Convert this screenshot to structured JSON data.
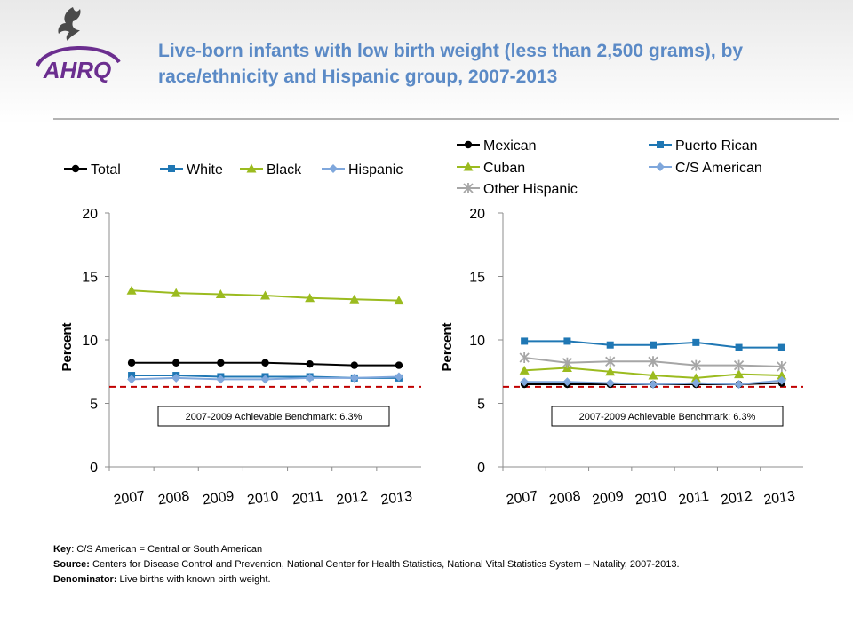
{
  "header": {
    "title": "Live-born infants with low birth weight (less than 2,500 grams), by race/ethnicity and Hispanic group, 2007-2013",
    "logo_text": "AHRQ"
  },
  "colors": {
    "title": "#5b8ac6",
    "benchmark_line": "#c00000",
    "ahrq_purple": "#6b2e8f"
  },
  "chart_data": [
    {
      "type": "line",
      "title": "",
      "xlabel": "",
      "ylabel": "Percent",
      "ylim": [
        0,
        20
      ],
      "yticks": [
        0,
        5,
        10,
        15,
        20
      ],
      "grid": false,
      "legend": "top",
      "categories": [
        "2007",
        "2008",
        "2009",
        "2010",
        "2011",
        "2012",
        "2013"
      ],
      "series": [
        {
          "name": "Total",
          "color": "#000000",
          "marker": "circle",
          "values": [
            8.2,
            8.2,
            8.2,
            8.2,
            8.1,
            8.0,
            8.0
          ]
        },
        {
          "name": "White",
          "color": "#1f77b4",
          "marker": "square",
          "values": [
            7.2,
            7.2,
            7.1,
            7.1,
            7.1,
            7.0,
            7.0
          ]
        },
        {
          "name": "Black",
          "color": "#9bbb1f",
          "marker": "triangle",
          "values": [
            13.9,
            13.7,
            13.6,
            13.5,
            13.3,
            13.2,
            13.1
          ]
        },
        {
          "name": "Hispanic",
          "color": "#7fa7dc",
          "marker": "diamond",
          "values": [
            6.9,
            7.0,
            6.9,
            6.9,
            7.0,
            7.0,
            7.1
          ]
        }
      ],
      "benchmark": {
        "value": 6.3,
        "label": "2007-2009  Achievable Benchmark:  6.3%"
      }
    },
    {
      "type": "line",
      "title": "",
      "xlabel": "",
      "ylabel": "Percent",
      "ylim": [
        0,
        20
      ],
      "yticks": [
        0,
        5,
        10,
        15,
        20
      ],
      "grid": false,
      "legend": "top",
      "categories": [
        "2007",
        "2008",
        "2009",
        "2010",
        "2011",
        "2012",
        "2013"
      ],
      "series": [
        {
          "name": "Mexican",
          "color": "#000000",
          "marker": "circle",
          "values": [
            6.5,
            6.5,
            6.5,
            6.5,
            6.5,
            6.5,
            6.6
          ]
        },
        {
          "name": "Puerto Rican",
          "color": "#1f77b4",
          "marker": "square",
          "values": [
            9.9,
            9.9,
            9.6,
            9.6,
            9.8,
            9.4,
            9.4
          ]
        },
        {
          "name": "Cuban",
          "color": "#9bbb1f",
          "marker": "triangle",
          "values": [
            7.6,
            7.8,
            7.5,
            7.2,
            7.0,
            7.3,
            7.2
          ]
        },
        {
          "name": "C/S American",
          "color": "#7fa7dc",
          "marker": "diamond",
          "values": [
            6.7,
            6.7,
            6.6,
            6.5,
            6.6,
            6.5,
            6.8
          ]
        },
        {
          "name": "Other Hispanic",
          "color": "#a6a6a6",
          "marker": "star",
          "values": [
            8.6,
            8.2,
            8.3,
            8.3,
            8.0,
            8.0,
            7.9
          ]
        }
      ],
      "benchmark": {
        "value": 6.3,
        "label": "2007-2009  Achievable Benchmark:  6.3%"
      }
    }
  ],
  "footer": {
    "key_label": "Key",
    "key_text": ": C/S American = Central or South American",
    "source_label": "Source:",
    "source_text": "  Centers for Disease Control and Prevention, National Center for Health Statistics, National Vital Statistics System – Natality, 2007-2013.",
    "denominator_label": "Denominator:",
    "denominator_text": " Live births with known birth weight."
  }
}
